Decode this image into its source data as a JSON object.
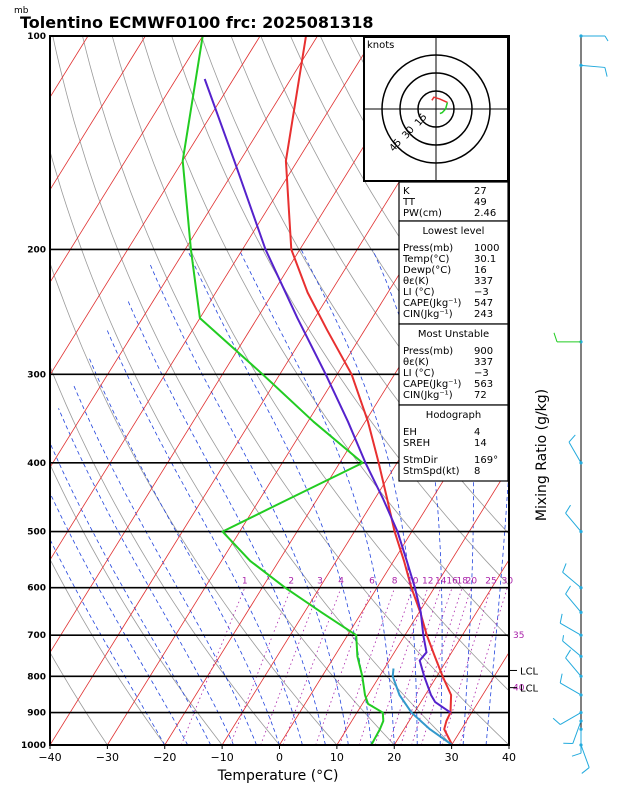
{
  "header": {
    "unit_label": "mb",
    "title": "Tolentino ECMWF0100 frc: 2025081318"
  },
  "colors": {
    "temperature": "#e83030",
    "dewpoint": "#22cc22",
    "parcel": "#5522cc",
    "lcl_parcel": "#3399cc",
    "isotherm": "#e03030",
    "dry_adiabat": "#9a9a9a",
    "moist_adiabat": "#2244dd",
    "mixing_ratio": "#aa22aa",
    "wind": "#22aadd"
  },
  "chart_data": {
    "type": "line",
    "xlabel": "Temperature (°C)",
    "ylabel_right": "Mixing Ratio (g/kg)",
    "x_ticks": [
      "−40",
      "−30",
      "−20",
      "−10",
      "0",
      "10",
      "20",
      "30",
      "40"
    ],
    "x_tick_values": [
      -40,
      -30,
      -20,
      -10,
      0,
      10,
      20,
      30,
      40
    ],
    "y_scale": "log",
    "ylim": [
      1000,
      100
    ],
    "y_ticks": [
      "100",
      "200",
      "300",
      "400",
      "500",
      "600",
      "700",
      "800",
      "900",
      "1000"
    ],
    "y_tick_values": [
      100,
      200,
      300,
      400,
      500,
      600,
      700,
      800,
      900,
      1000
    ],
    "mixing_ratio_labels": [
      "1",
      "2",
      "3",
      "4",
      "6",
      "8",
      "10",
      "12",
      "14",
      "16",
      "18",
      "20",
      "25",
      "30"
    ],
    "mixing_ratio_values": [
      1,
      2,
      3,
      4,
      6,
      8,
      10,
      12,
      14,
      16,
      18,
      20,
      25,
      30
    ],
    "series": [
      {
        "key": "temperature",
        "points": [
          [
            1000,
            30.1
          ],
          [
            950,
            27.0
          ],
          [
            925,
            26.5
          ],
          [
            900,
            26.3
          ],
          [
            850,
            24.5
          ],
          [
            800,
            21.0
          ],
          [
            750,
            17.5
          ],
          [
            700,
            13.8
          ],
          [
            650,
            10.2
          ],
          [
            600,
            6.0
          ],
          [
            550,
            1.8
          ],
          [
            500,
            -3.0
          ],
          [
            450,
            -7.8
          ],
          [
            400,
            -13.2
          ],
          [
            350,
            -19.5
          ],
          [
            300,
            -27.5
          ],
          [
            260,
            -36.5
          ],
          [
            230,
            -44.0
          ],
          [
            200,
            -51.5
          ],
          [
            150,
            -62.0
          ],
          [
            100,
            -72.0
          ]
        ]
      },
      {
        "key": "dewpoint",
        "points": [
          [
            1000,
            16.0
          ],
          [
            950,
            15.8
          ],
          [
            925,
            15.5
          ],
          [
            900,
            14.5
          ],
          [
            875,
            11.0
          ],
          [
            850,
            9.5
          ],
          [
            800,
            7.0
          ],
          [
            750,
            4.0
          ],
          [
            700,
            1.5
          ],
          [
            650,
            -7.0
          ],
          [
            600,
            -16.0
          ],
          [
            550,
            -25.0
          ],
          [
            500,
            -33.0
          ],
          [
            450,
            -25.0
          ],
          [
            400,
            -16.0
          ],
          [
            350,
            -29.0
          ],
          [
            300,
            -43.0
          ],
          [
            250,
            -60.0
          ],
          [
            200,
            -69.0
          ],
          [
            150,
            -80.0
          ],
          [
            100,
            -90.0
          ]
        ]
      },
      {
        "key": "parcel",
        "points": [
          [
            900,
            26.3
          ],
          [
            870,
            22.5
          ],
          [
            850,
            21.0
          ],
          [
            800,
            17.8
          ],
          [
            760,
            15.3
          ],
          [
            740,
            15.6
          ],
          [
            700,
            13.2
          ],
          [
            650,
            10.3
          ],
          [
            600,
            6.6
          ],
          [
            550,
            2.3
          ],
          [
            500,
            -2.5
          ],
          [
            450,
            -8.5
          ],
          [
            400,
            -15.5
          ],
          [
            350,
            -23.0
          ],
          [
            300,
            -32.0
          ],
          [
            250,
            -43.0
          ],
          [
            200,
            -56.0
          ],
          [
            150,
            -71.0
          ],
          [
            115,
            -85.0
          ]
        ]
      },
      {
        "key": "lcl_parcel",
        "points": [
          [
            1000,
            30.1
          ],
          [
            950,
            24.5
          ],
          [
            900,
            19.5
          ],
          [
            850,
            15.5
          ],
          [
            800,
            12.3
          ],
          [
            780,
            11.6
          ]
        ]
      }
    ],
    "lcl_labels": [
      {
        "text": "LCL",
        "pressure": 785
      },
      {
        "text": "LCL",
        "pressure": 830
      }
    ],
    "purple_labels": [
      {
        "text": "35",
        "pressure": 700
      },
      {
        "text": "40",
        "pressure": 830
      }
    ],
    "hodograph": {
      "unit": "knots",
      "rings": [
        15,
        30,
        45
      ],
      "ring_labels": [
        "15",
        "30",
        "45"
      ],
      "max_speed": 60,
      "trace": [
        [
          155,
          8
        ],
        [
          170,
          10
        ],
        [
          200,
          9
        ],
        [
          240,
          11
        ],
        [
          270,
          8
        ],
        [
          300,
          6
        ],
        [
          320,
          5
        ]
      ]
    },
    "indices": {
      "top": [
        {
          "label": "K",
          "value": "27"
        },
        {
          "label": "TT",
          "value": "49"
        },
        {
          "label": "PW(cm)",
          "value": "2.46"
        }
      ],
      "sections": [
        {
          "title": "Lowest level",
          "rows": [
            {
              "label": "Press(mb)",
              "value": "1000"
            },
            {
              "label": "Temp(°C)",
              "value": "30.1"
            },
            {
              "label": "Dewp(°C)",
              "value": "16"
            },
            {
              "label": "θε(K)",
              "value": "337"
            },
            {
              "label": "LI (°C)",
              "value": "−3"
            },
            {
              "label": "CAPE(Jkg⁻¹)",
              "value": "547"
            },
            {
              "label": "CIN(Jkg⁻¹)",
              "value": "243"
            }
          ]
        },
        {
          "title": "Most Unstable",
          "rows": [
            {
              "label": "Press(mb)",
              "value": "900"
            },
            {
              "label": "θε(K)",
              "value": "337"
            },
            {
              "label": "LI (°C)",
              "value": "−3"
            },
            {
              "label": "CAPE(Jkg⁻¹)",
              "value": "563"
            },
            {
              "label": "CIN(Jkg⁻¹)",
              "value": "72"
            }
          ]
        },
        {
          "title": "Hodograph",
          "rows": [
            {
              "label": "EH",
              "value": "4"
            },
            {
              "label": "SREH",
              "value": "14"
            },
            {
              "label": "StmDir",
              "value": "169°"
            },
            {
              "label": "StmSpd(kt)",
              "value": "8"
            }
          ]
        }
      ]
    },
    "wind_barbs": [
      {
        "pressure": 100,
        "dir": 90,
        "speed": 5
      },
      {
        "pressure": 110,
        "dir": 95,
        "speed": 10
      },
      {
        "pressure": 270,
        "dir": 270,
        "speed": 10
      },
      {
        "pressure": 400,
        "dir": 330,
        "speed": 10
      },
      {
        "pressure": 500,
        "dir": 320,
        "speed": 10
      },
      {
        "pressure": 600,
        "dir": 310,
        "speed": 10
      },
      {
        "pressure": 650,
        "dir": 320,
        "speed": 10
      },
      {
        "pressure": 700,
        "dir": 300,
        "speed": 10
      },
      {
        "pressure": 750,
        "dir": 310,
        "speed": 5
      },
      {
        "pressure": 800,
        "dir": 320,
        "speed": 10
      },
      {
        "pressure": 850,
        "dir": 300,
        "speed": 10
      },
      {
        "pressure": 900,
        "dir": 240,
        "speed": 10
      },
      {
        "pressure": 925,
        "dir": 200,
        "speed": 10
      },
      {
        "pressure": 950,
        "dir": 180,
        "speed": 10
      },
      {
        "pressure": 1000,
        "dir": 160,
        "speed": 10
      }
    ]
  }
}
